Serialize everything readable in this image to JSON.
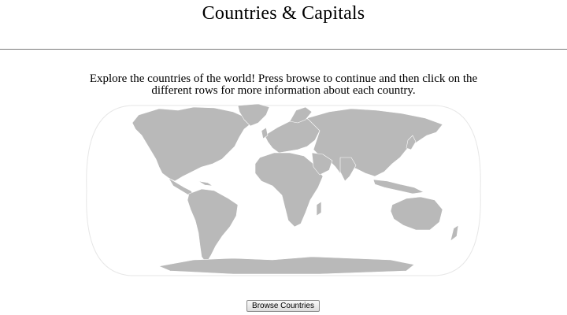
{
  "header": {
    "title": "Countries & Capitals"
  },
  "intro": {
    "text": "Explore the countries of the world! Press browse to continue and then click on the different rows for more information about each country."
  },
  "map": {
    "land_color": "#b9b9b9",
    "border_color": "#ffffff",
    "outline_color": "#e6e6e6"
  },
  "actions": {
    "browse_label": "Browse Countries"
  }
}
